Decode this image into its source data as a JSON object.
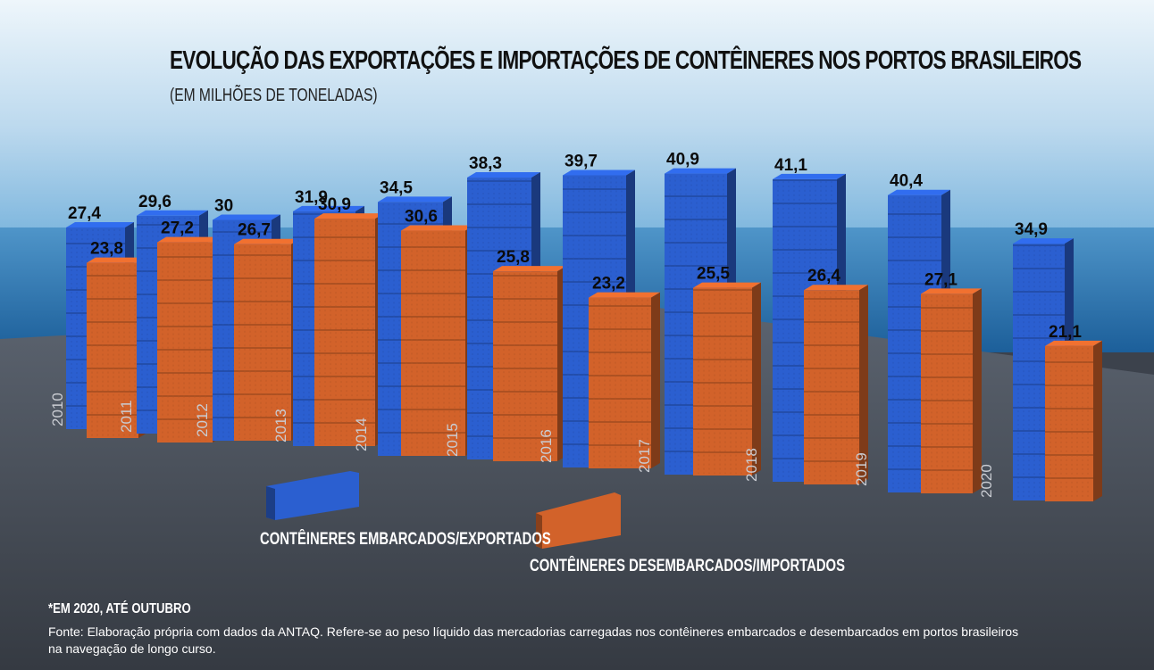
{
  "title": "EVOLUÇÃO DAS EXPORTAÇÕES E IMPORTAÇÕES DE CONTÊINERES NOS PORTOS BRASILEIROS",
  "subtitle": "(EM MILHÕES DE TONELADAS)",
  "note": "*EM 2020, ATÉ OUTUBRO",
  "source": "Fonte: Elaboração própria com dados da ANTAQ. Refere-se ao peso líquido das mercadorias carregadas nos contêineres embarcados e desembarcados em portos brasileiros na navegação de longo curso.",
  "legend": {
    "export_label": "CONTÊINERES EMBARCADOS/EXPORTADOS",
    "import_label": "CONTÊINERES DESEMBARCADOS/IMPORTADOS"
  },
  "colors": {
    "export": "#2b5fd0",
    "import": "#d2622a",
    "sky": "#cfe4f3",
    "sea": "#2d79b4",
    "ground": "#3c424c"
  },
  "chart_data": {
    "type": "bar",
    "categories": [
      "2010",
      "2011",
      "2012",
      "2013",
      "2014",
      "2015",
      "2016",
      "2017",
      "2018",
      "2019",
      "2020"
    ],
    "series": [
      {
        "name": "CONTÊINERES EMBARCADOS/EXPORTADOS",
        "values": [
          27.4,
          29.6,
          30,
          31.9,
          34.5,
          38.3,
          39.7,
          40.9,
          41.1,
          40.4,
          34.9
        ]
      },
      {
        "name": "CONTÊINERES DESEMBARCADOS/IMPORTADOS",
        "values": [
          23.8,
          27.2,
          26.7,
          30.9,
          30.6,
          25.8,
          23.2,
          25.5,
          26.4,
          27.1,
          21.1
        ]
      }
    ],
    "value_labels": {
      "export": [
        "27,4",
        "29,6",
        "30",
        "31,9",
        "34,5",
        "38,3",
        "39,7",
        "40,9",
        "41,1",
        "40,4",
        "34,9"
      ],
      "import": [
        "23,8",
        "27,2",
        "26,7",
        "30,9",
        "30,6",
        "25,8",
        "23,2",
        "25,5",
        "26,4",
        "27,1",
        "21,1"
      ]
    },
    "unit": "milhões de toneladas"
  }
}
